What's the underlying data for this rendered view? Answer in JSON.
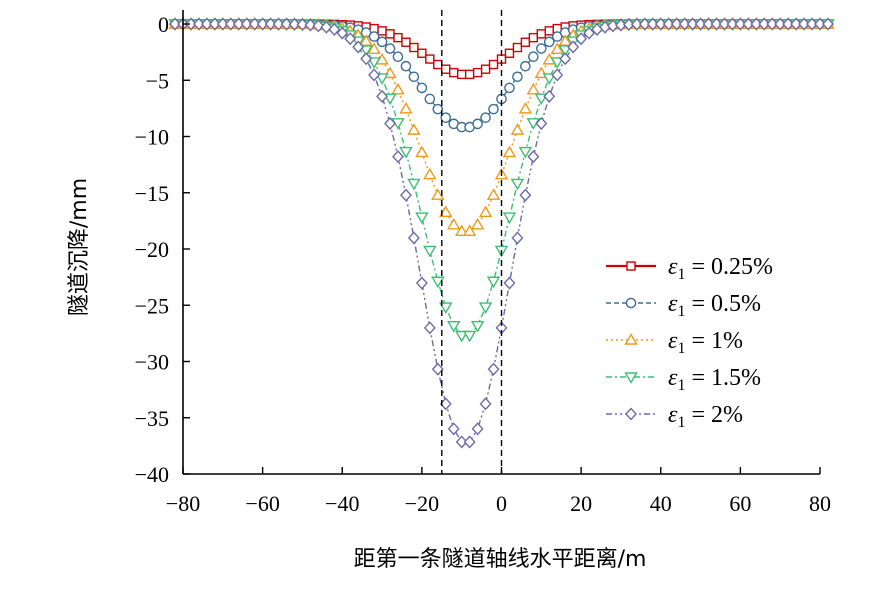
{
  "chart_data": {
    "type": "line",
    "xlabel": "距第一条隧道轴线水平距离/m",
    "ylabel": "隧道沉降/mm",
    "xlim": [
      -80,
      80
    ],
    "ylim": [
      -40,
      0
    ],
    "xticks": [
      -80,
      -60,
      -40,
      -20,
      0,
      20,
      40,
      60,
      80
    ],
    "yticks": [
      0,
      -5,
      -10,
      -15,
      -20,
      -25,
      -30,
      -35,
      -40
    ],
    "xtick_labels": [
      "−80",
      "−60",
      "−40",
      "−20",
      "0",
      "20",
      "40",
      "60",
      "80"
    ],
    "ytick_labels": [
      "0",
      "−5",
      "−10",
      "−15",
      "−20",
      "−25",
      "−30",
      "−35",
      "−40"
    ],
    "grid": false,
    "legend_position": "right",
    "x_range": [
      -82,
      82
    ],
    "x_step": 2,
    "reference_lines_x": [
      -15,
      0
    ],
    "series": [
      {
        "name": "ε1 = 0.25%",
        "name_symbol": "ε",
        "name_sub": "1",
        "name_rest": " = 0.25%",
        "peak": -4.5,
        "center": -9,
        "width": 10.5,
        "color": "#cc0000",
        "marker": "square",
        "dash": "solid"
      },
      {
        "name": "ε1 = 0.5%",
        "name_symbol": "ε",
        "name_sub": "1",
        "name_rest": " = 0.5%",
        "peak": -9.2,
        "center": -9,
        "width": 11.2,
        "color": "#3d6e99",
        "marker": "circle",
        "dash": "dashed"
      },
      {
        "name": "ε1 = 1%",
        "name_symbol": "ε",
        "name_sub": "1",
        "name_rest": " = 1%",
        "peak": -18.5,
        "center": -9,
        "width": 11.2,
        "color": "#f09a1c",
        "marker": "triangle-up",
        "dash": "dotted"
      },
      {
        "name": "ε1 = 1.5%",
        "name_symbol": "ε",
        "name_sub": "1",
        "name_rest": " = 1.5%",
        "peak": -27.8,
        "center": -9,
        "width": 11.2,
        "color": "#3cbf72",
        "marker": "triangle-down",
        "dash": "dashdot"
      },
      {
        "name": "ε1 = 2%",
        "name_symbol": "ε",
        "name_sub": "1",
        "name_rest": " = 2%",
        "peak": -37.3,
        "center": -9,
        "width": 11.2,
        "color": "#6b6aa6",
        "marker": "diamond",
        "dash": "dashdotdot"
      }
    ]
  }
}
